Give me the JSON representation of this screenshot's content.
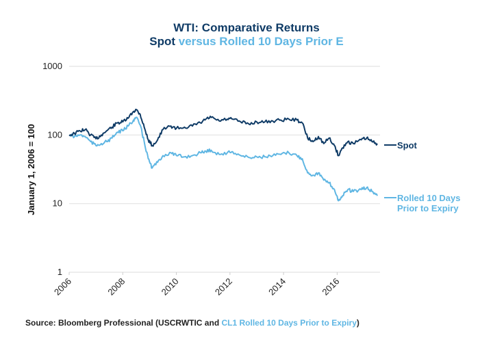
{
  "chart_data": {
    "type": "line",
    "title": "WTI: Comparative Returns",
    "subtitle_parts": [
      {
        "text": "Spot",
        "color": "#0f3b66"
      },
      {
        "text": " versus Rolled 10 Days Prior E",
        "color": "#5fb6e3"
      }
    ],
    "xlabel": "",
    "ylabel": "January 1, 2006 = 100",
    "yscale": "log",
    "ylim": [
      1,
      1000
    ],
    "yticks": [
      {
        "v": 1000,
        "label": "1000"
      },
      {
        "v": 100,
        "label": "100"
      },
      {
        "v": 10,
        "label": "10"
      },
      {
        "v": 1,
        "label": "1"
      }
    ],
    "xlim": [
      2006,
      2017.6
    ],
    "xticks": [
      {
        "v": 2006,
        "label": "2006"
      },
      {
        "v": 2008,
        "label": "2008"
      },
      {
        "v": 2010,
        "label": "2010"
      },
      {
        "v": 2012,
        "label": "2012"
      },
      {
        "v": 2014,
        "label": "2014"
      },
      {
        "v": 2016,
        "label": "2016"
      }
    ],
    "grid": "horizontal",
    "legend_placement": "right-inline",
    "series": [
      {
        "name": "Spot",
        "label_lines": [
          "Spot"
        ],
        "color": "#0f3b66",
        "x": [
          2006.0,
          2006.2,
          2006.4,
          2006.6,
          2006.8,
          2007.0,
          2007.2,
          2007.4,
          2007.6,
          2007.8,
          2008.0,
          2008.2,
          2008.4,
          2008.5,
          2008.65,
          2008.8,
          2008.95,
          2009.1,
          2009.3,
          2009.5,
          2009.8,
          2010.0,
          2010.3,
          2010.6,
          2010.9,
          2011.1,
          2011.3,
          2011.6,
          2011.9,
          2012.1,
          2012.4,
          2012.7,
          2013.0,
          2013.3,
          2013.6,
          2013.9,
          2014.2,
          2014.5,
          2014.7,
          2014.9,
          2015.1,
          2015.3,
          2015.5,
          2015.7,
          2015.9,
          2016.05,
          2016.2,
          2016.4,
          2016.6,
          2016.9,
          2017.1,
          2017.3,
          2017.5
        ],
        "values": [
          100,
          105,
          115,
          120,
          100,
          88,
          100,
          115,
          130,
          150,
          155,
          175,
          220,
          235,
          200,
          130,
          85,
          70,
          85,
          120,
          135,
          125,
          130,
          135,
          150,
          170,
          180,
          160,
          170,
          170,
          155,
          145,
          155,
          155,
          160,
          165,
          170,
          165,
          150,
          90,
          80,
          95,
          75,
          90,
          70,
          50,
          65,
          80,
          75,
          85,
          90,
          80,
          75
        ]
      },
      {
        "name": "Rolled 10 Days Prior to Expiry",
        "label_lines": [
          "Rolled 10 Days",
          "Prior to Expiry"
        ],
        "color": "#5fb6e3",
        "x": [
          2006.0,
          2006.2,
          2006.4,
          2006.6,
          2006.8,
          2007.0,
          2007.2,
          2007.4,
          2007.6,
          2007.8,
          2008.0,
          2008.2,
          2008.4,
          2008.5,
          2008.65,
          2008.8,
          2008.95,
          2009.1,
          2009.3,
          2009.5,
          2009.8,
          2010.0,
          2010.3,
          2010.6,
          2010.9,
          2011.1,
          2011.3,
          2011.6,
          2011.9,
          2012.1,
          2012.4,
          2012.7,
          2013.0,
          2013.3,
          2013.6,
          2013.9,
          2014.2,
          2014.5,
          2014.7,
          2014.9,
          2015.1,
          2015.3,
          2015.5,
          2015.7,
          2015.9,
          2016.05,
          2016.2,
          2016.4,
          2016.6,
          2016.9,
          2017.1,
          2017.3,
          2017.5
        ],
        "values": [
          100,
          95,
          100,
          95,
          80,
          70,
          75,
          80,
          90,
          110,
          115,
          135,
          165,
          180,
          140,
          80,
          45,
          33,
          40,
          50,
          55,
          50,
          48,
          50,
          55,
          58,
          60,
          52,
          55,
          57,
          50,
          47,
          48,
          48,
          50,
          52,
          55,
          50,
          45,
          28,
          26,
          28,
          22,
          20,
          16,
          11,
          13,
          16,
          15,
          16,
          17,
          15,
          13
        ]
      }
    ],
    "source": {
      "prefix": "Source: Bloomberg Professional (USCRWTIC and ",
      "highlight": "CL1 Rolled 10 Days Prior to Expiry",
      "suffix": ")"
    }
  }
}
